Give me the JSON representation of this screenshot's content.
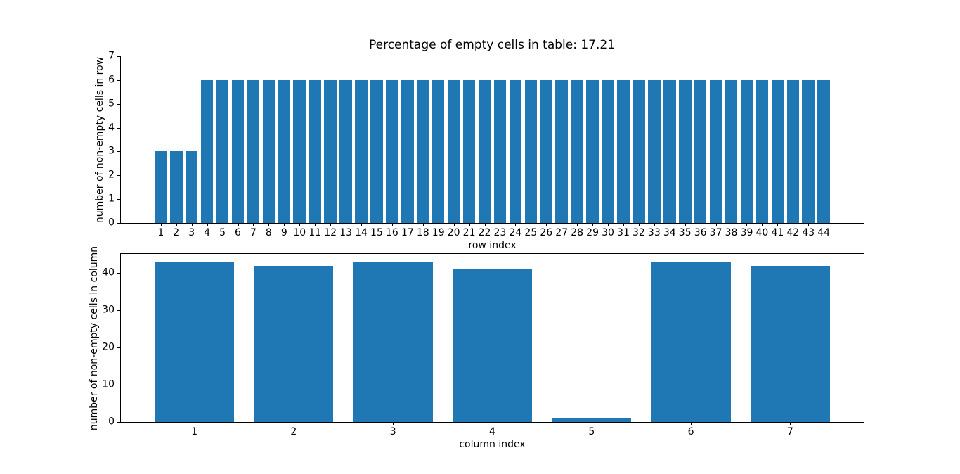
{
  "figure": {
    "background_color": "#ffffff",
    "bar_color": "#1f77b4",
    "text_color": "#000000"
  },
  "chart_data": [
    {
      "type": "bar",
      "title": "Percentage of empty cells in table: 17.21",
      "xlabel": "row index",
      "ylabel": "number of non-empty cells in row",
      "categories": [
        "1",
        "2",
        "3",
        "4",
        "5",
        "6",
        "7",
        "8",
        "9",
        "10",
        "11",
        "12",
        "13",
        "14",
        "15",
        "16",
        "17",
        "18",
        "19",
        "20",
        "21",
        "22",
        "23",
        "24",
        "25",
        "26",
        "27",
        "28",
        "29",
        "30",
        "31",
        "32",
        "33",
        "34",
        "35",
        "36",
        "37",
        "38",
        "39",
        "40",
        "41",
        "42",
        "43",
        "44"
      ],
      "values": [
        3,
        3,
        3,
        6,
        6,
        6,
        6,
        6,
        6,
        6,
        6,
        6,
        6,
        6,
        6,
        6,
        6,
        6,
        6,
        6,
        6,
        6,
        6,
        6,
        6,
        6,
        6,
        6,
        6,
        6,
        6,
        6,
        6,
        6,
        6,
        6,
        6,
        6,
        6,
        6,
        6,
        6,
        6,
        6
      ],
      "ylim": [
        0,
        7
      ],
      "yticks": [
        0,
        1,
        2,
        3,
        4,
        5,
        6,
        7
      ],
      "bar_width": 0.8,
      "grid": false,
      "legend": null
    },
    {
      "type": "bar",
      "title": "",
      "xlabel": "column index",
      "ylabel": "number of non-empty cells in column",
      "categories": [
        "1",
        "2",
        "3",
        "4",
        "5",
        "6",
        "7"
      ],
      "values": [
        43,
        42,
        43,
        41,
        1,
        43,
        42
      ],
      "ylim": [
        0,
        45.15
      ],
      "yticks": [
        0,
        10,
        20,
        30,
        40
      ],
      "bar_width": 0.8,
      "grid": false,
      "legend": null
    }
  ]
}
